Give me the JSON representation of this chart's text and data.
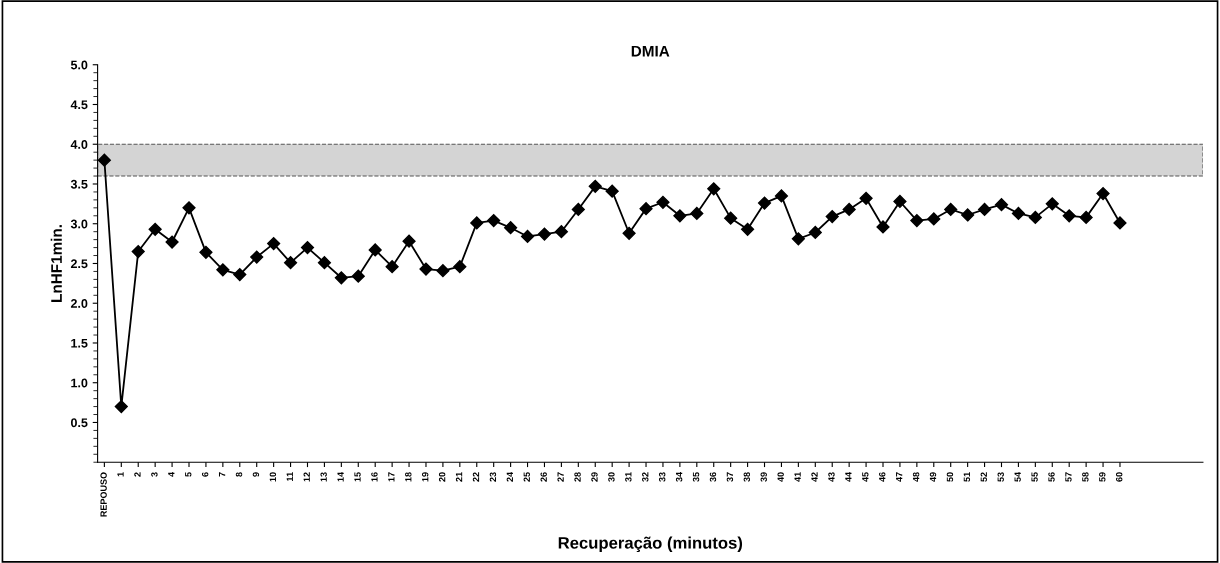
{
  "chart_data": {
    "type": "line",
    "title": "DMIA",
    "xlabel": "Recuperação (minutos)",
    "ylabel": "LnHF1min.",
    "categories": [
      "REPOUSO",
      "1",
      "2",
      "3",
      "4",
      "5",
      "6",
      "7",
      "8",
      "9",
      "10",
      "11",
      "12",
      "13",
      "14",
      "15",
      "16",
      "17",
      "18",
      "19",
      "20",
      "21",
      "22",
      "23",
      "24",
      "25",
      "26",
      "27",
      "28",
      "29",
      "30",
      "31",
      "32",
      "33",
      "34",
      "35",
      "36",
      "37",
      "38",
      "39",
      "40",
      "41",
      "42",
      "43",
      "44",
      "45",
      "46",
      "47",
      "48",
      "49",
      "50",
      "51",
      "52",
      "53",
      "54",
      "55",
      "56",
      "57",
      "58",
      "59",
      "60"
    ],
    "series": [
      {
        "color": "#000000",
        "values": [
          3.8,
          0.7,
          2.65,
          2.93,
          2.77,
          3.2,
          2.64,
          2.42,
          2.36,
          2.58,
          2.75,
          2.51,
          2.7,
          2.51,
          2.32,
          2.34,
          2.67,
          2.46,
          2.78,
          2.43,
          2.41,
          2.46,
          3.01,
          3.04,
          2.95,
          2.84,
          2.87,
          2.9,
          3.18,
          3.47,
          3.41,
          2.88,
          3.19,
          3.27,
          3.1,
          3.13,
          3.44,
          3.07,
          2.93,
          3.26,
          3.35,
          2.81,
          2.89,
          3.09,
          3.18,
          3.32,
          2.96,
          3.28,
          3.04,
          3.06,
          3.18,
          3.11,
          3.18,
          3.24,
          3.13,
          3.08,
          3.25,
          3.1,
          3.08,
          3.38,
          3.01
        ]
      }
    ],
    "ylim": [
      0,
      5.0
    ],
    "yticks": [
      0.5,
      {
        "value": 1,
        "label": "1.0"
      },
      1.5,
      {
        "value": 2,
        "label": "2.0"
      },
      2.5,
      {
        "value": 3,
        "label": "3.0"
      },
      3.5,
      {
        "value": 4,
        "label": "4.0"
      },
      4.5,
      {
        "value": 5,
        "label": "5.0"
      }
    ],
    "bands": [
      {
        "axis": "y",
        "from": 3.6,
        "to": 4.0,
        "color": "#d4d4d4"
      }
    ],
    "marker": "diamond",
    "line_style": "solid",
    "grid": false,
    "legend": false
  }
}
